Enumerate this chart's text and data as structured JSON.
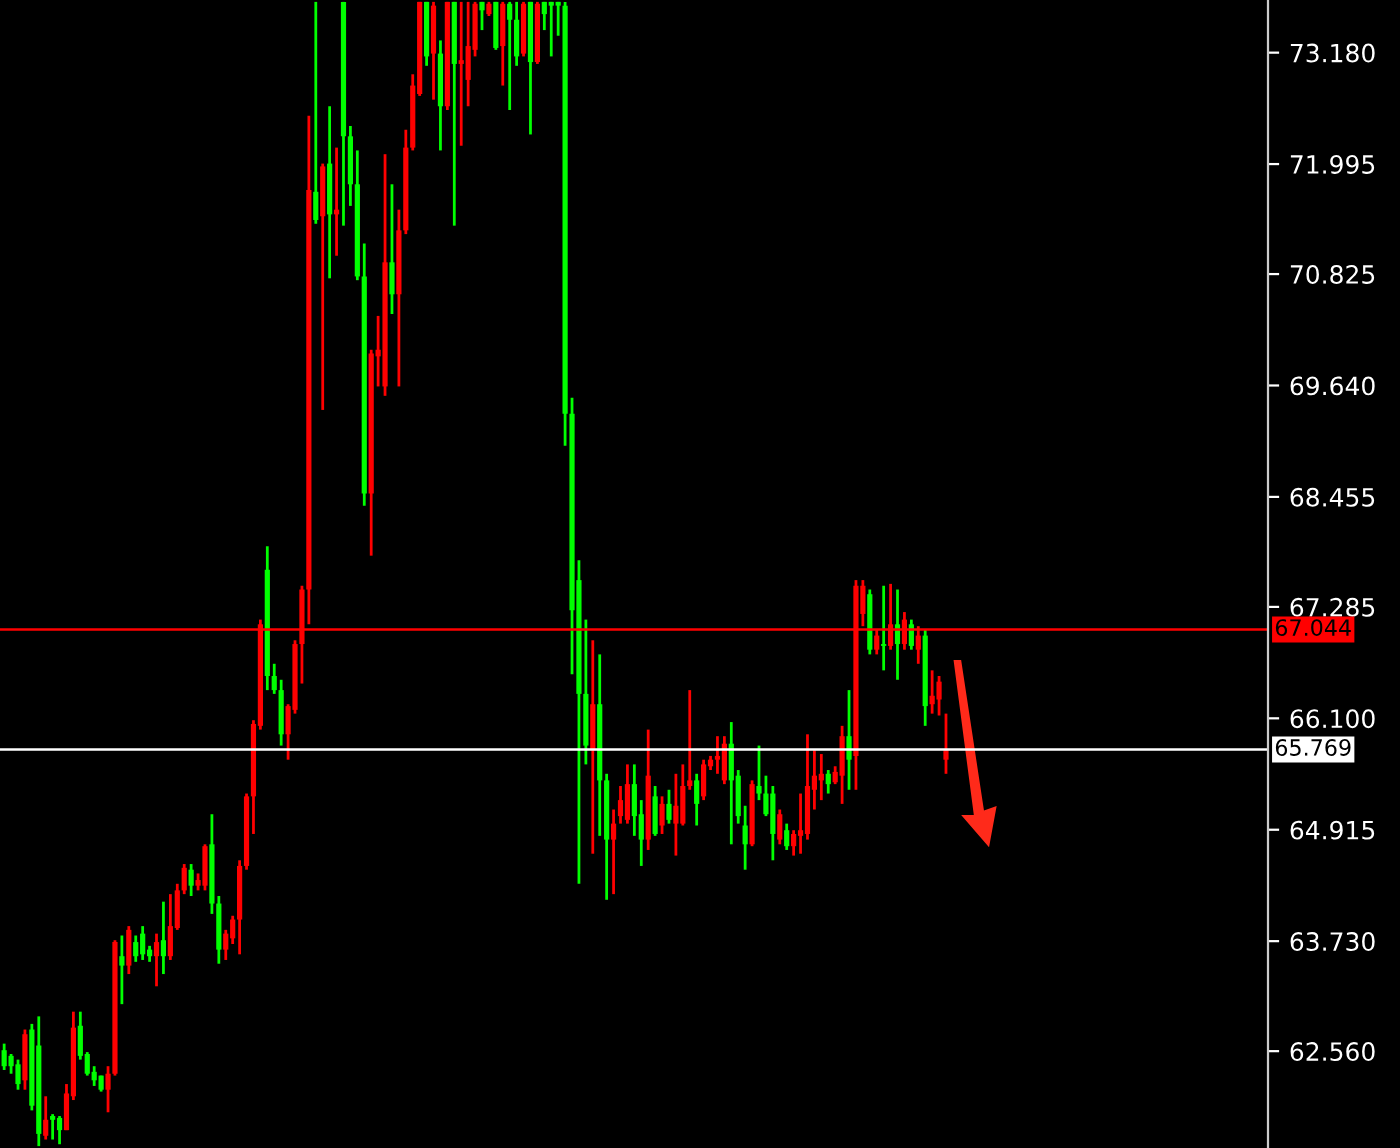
{
  "chart_data": {
    "type": "candlestick",
    "categories": [
      null,
      null,
      null,
      null,
      null,
      null,
      null,
      null,
      null,
      null,
      null,
      null,
      null,
      null,
      null,
      null,
      null,
      null,
      null,
      null,
      null,
      null,
      null,
      null,
      null,
      null,
      null,
      null,
      null,
      null,
      null,
      null,
      null,
      null,
      null,
      null,
      null,
      null,
      null,
      null,
      null,
      null,
      null,
      null,
      null,
      null,
      null,
      null,
      null,
      null,
      null,
      null,
      null,
      null,
      null,
      null,
      null,
      null,
      null,
      null,
      null,
      null,
      null,
      null,
      null,
      null,
      null,
      null,
      null,
      null,
      null,
      null,
      null,
      null,
      null,
      null,
      null,
      null,
      null,
      null,
      null,
      null,
      null,
      null,
      null,
      null,
      null,
      null,
      null,
      null,
      null,
      null,
      null,
      null,
      null,
      null,
      null,
      null,
      null,
      null,
      null,
      null,
      null,
      null,
      null,
      null,
      null,
      null,
      null,
      null,
      null,
      null,
      null,
      null,
      null,
      null,
      null,
      null,
      null,
      null,
      null,
      null,
      null,
      null,
      null,
      null,
      null,
      null,
      null,
      null,
      null,
      null,
      null,
      null,
      null,
      null,
      null,
      null,
      null,
      null,
      null,
      null,
      null,
      null,
      null,
      null,
      null,
      null,
      null,
      null,
      null,
      null,
      null,
      null,
      null,
      null,
      null,
      null,
      null,
      null,
      null,
      null,
      null,
      null,
      null,
      null,
      null,
      null,
      null,
      null,
      null,
      null,
      null,
      null,
      null,
      null,
      null,
      null,
      null,
      null,
      null,
      null,
      null
    ],
    "ohlc": [
      [
        62.57,
        62.64,
        62.36,
        62.4
      ],
      [
        62.51,
        62.53,
        62.32,
        62.4
      ],
      [
        62.42,
        62.47,
        62.15,
        62.21
      ],
      [
        62.25,
        62.79,
        62.15,
        62.74
      ],
      [
        62.79,
        62.85,
        61.93,
        61.98
      ],
      [
        62.62,
        62.93,
        61.55,
        61.68
      ],
      [
        61.66,
        62.08,
        61.62,
        61.83
      ],
      [
        61.87,
        61.89,
        61.62,
        61.83
      ],
      [
        61.85,
        61.87,
        61.57,
        61.72
      ],
      [
        61.72,
        62.21,
        61.72,
        62.11
      ],
      [
        62.08,
        62.98,
        62.04,
        62.81
      ],
      [
        62.83,
        62.98,
        62.47,
        62.51
      ],
      [
        62.53,
        62.55,
        62.3,
        62.32
      ],
      [
        62.34,
        62.4,
        62.19,
        62.25
      ],
      [
        62.3,
        62.3,
        62.13,
        62.15
      ],
      [
        62.15,
        62.4,
        61.91,
        62.32
      ],
      [
        62.32,
        63.74,
        62.3,
        63.72
      ],
      [
        63.57,
        63.79,
        63.06,
        63.47
      ],
      [
        63.47,
        63.89,
        63.38,
        63.85
      ],
      [
        63.72,
        63.79,
        63.51,
        63.57
      ],
      [
        63.81,
        63.89,
        63.53,
        63.59
      ],
      [
        63.64,
        63.68,
        63.51,
        63.57
      ],
      [
        63.57,
        63.81,
        63.25,
        63.72
      ],
      [
        63.74,
        64.15,
        63.38,
        63.57
      ],
      [
        63.57,
        64.23,
        63.53,
        63.89
      ],
      [
        63.87,
        64.34,
        63.85,
        64.27
      ],
      [
        64.27,
        64.55,
        64.23,
        64.51
      ],
      [
        64.49,
        64.55,
        64.21,
        64.32
      ],
      [
        64.32,
        64.45,
        64.27,
        64.38
      ],
      [
        64.32,
        64.76,
        64.27,
        64.74
      ],
      [
        64.76,
        65.08,
        64.02,
        64.13
      ],
      [
        64.13,
        64.21,
        63.49,
        63.64
      ],
      [
        63.64,
        63.85,
        63.53,
        63.81
      ],
      [
        63.76,
        64.0,
        63.7,
        63.96
      ],
      [
        63.96,
        64.59,
        63.59,
        64.53
      ],
      [
        64.53,
        65.3,
        64.49,
        65.27
      ],
      [
        65.27,
        66.08,
        64.87,
        66.04
      ],
      [
        66.02,
        67.15,
        65.98,
        67.1
      ],
      [
        67.68,
        67.93,
        66.4,
        66.55
      ],
      [
        66.55,
        66.68,
        66.36,
        66.4
      ],
      [
        66.4,
        66.51,
        65.81,
        65.93
      ],
      [
        65.93,
        66.25,
        65.66,
        66.23
      ],
      [
        66.19,
        66.93,
        66.15,
        66.89
      ],
      [
        66.89,
        67.51,
        66.47,
        67.47
      ],
      [
        67.47,
        72.51,
        67.1,
        71.72
      ],
      [
        71.7,
        73.72,
        71.36,
        71.4
      ],
      [
        71.44,
        72.0,
        69.38,
        71.97
      ],
      [
        72.0,
        72.61,
        70.78,
        71.46
      ],
      [
        71.46,
        72.17,
        71.02,
        71.51
      ],
      [
        73.72,
        73.72,
        71.34,
        72.29
      ],
      [
        72.29,
        72.4,
        71.55,
        71.78
      ],
      [
        71.78,
        72.14,
        70.76,
        70.8
      ],
      [
        70.8,
        71.15,
        68.36,
        68.49
      ],
      [
        68.49,
        70.02,
        67.83,
        69.98
      ],
      [
        69.95,
        70.38,
        69.63,
        70.02
      ],
      [
        69.63,
        72.1,
        69.53,
        70.95
      ],
      [
        70.95,
        71.78,
        70.4,
        70.61
      ],
      [
        70.61,
        71.51,
        69.63,
        71.29
      ],
      [
        71.29,
        72.36,
        71.25,
        72.17
      ],
      [
        72.17,
        72.95,
        72.14,
        72.83
      ],
      [
        72.74,
        73.72,
        72.72,
        73.72
      ],
      [
        73.72,
        73.72,
        73.04,
        73.14
      ],
      [
        73.17,
        73.72,
        72.68,
        73.68
      ],
      [
        73.17,
        73.31,
        72.14,
        72.61
      ],
      [
        72.61,
        73.72,
        72.57,
        73.72
      ],
      [
        73.72,
        73.72,
        71.34,
        73.06
      ],
      [
        73.06,
        73.72,
        72.19,
        73.1
      ],
      [
        72.89,
        73.72,
        72.61,
        73.25
      ],
      [
        73.21,
        73.72,
        73.14,
        73.7
      ],
      [
        73.72,
        73.72,
        73.42,
        73.63
      ],
      [
        73.59,
        73.72,
        73.57,
        73.7
      ],
      [
        73.72,
        73.72,
        73.21,
        73.23
      ],
      [
        73.25,
        73.72,
        72.83,
        73.7
      ],
      [
        73.7,
        73.72,
        72.57,
        73.53
      ],
      [
        73.53,
        73.72,
        73.04,
        73.14
      ],
      [
        73.17,
        73.72,
        73.14,
        73.7
      ],
      [
        73.72,
        73.72,
        72.31,
        73.08
      ],
      [
        73.08,
        73.72,
        73.06,
        73.7
      ],
      [
        73.72,
        73.72,
        73.42,
        73.59
      ],
      [
        73.72,
        73.72,
        73.14,
        73.68
      ],
      [
        73.72,
        73.72,
        73.36,
        73.68
      ],
      [
        73.68,
        73.72,
        69.0,
        69.34
      ],
      [
        69.34,
        69.51,
        66.57,
        67.25
      ],
      [
        67.57,
        67.78,
        64.34,
        66.36
      ],
      [
        66.36,
        67.15,
        65.61,
        65.81
      ],
      [
        65.76,
        66.93,
        64.66,
        66.25
      ],
      [
        66.25,
        66.78,
        64.85,
        65.44
      ],
      [
        65.44,
        65.51,
        64.17,
        64.81
      ],
      [
        64.81,
        65.13,
        64.23,
        64.98
      ],
      [
        65.06,
        65.38,
        64.98,
        65.23
      ],
      [
        65.02,
        65.61,
        64.98,
        65.4
      ],
      [
        65.4,
        65.61,
        64.85,
        65.06
      ],
      [
        65.08,
        65.23,
        64.53,
        64.81
      ],
      [
        64.81,
        65.98,
        64.7,
        65.49
      ],
      [
        65.27,
        65.38,
        64.85,
        64.87
      ],
      [
        64.96,
        65.27,
        64.87,
        65.19
      ],
      [
        65.19,
        65.34,
        64.98,
        65.02
      ],
      [
        64.98,
        65.51,
        64.64,
        65.17
      ],
      [
        64.98,
        65.61,
        64.96,
        65.38
      ],
      [
        65.38,
        66.4,
        65.34,
        65.44
      ],
      [
        65.44,
        65.51,
        64.96,
        65.19
      ],
      [
        65.27,
        65.66,
        65.23,
        65.61
      ],
      [
        65.59,
        65.7,
        65.55,
        65.66
      ],
      [
        65.66,
        65.91,
        65.51,
        65.7
      ],
      [
        65.44,
        65.91,
        65.4,
        65.83
      ],
      [
        65.83,
        66.06,
        64.76,
        65.44
      ],
      [
        65.49,
        65.55,
        64.98,
        65.06
      ],
      [
        64.96,
        65.17,
        64.49,
        64.76
      ],
      [
        64.76,
        65.44,
        64.74,
        65.4
      ],
      [
        65.38,
        65.81,
        65.23,
        65.3
      ],
      [
        65.3,
        65.49,
        65.06,
        65.08
      ],
      [
        65.3,
        65.38,
        64.59,
        64.87
      ],
      [
        64.81,
        65.13,
        64.76,
        65.08
      ],
      [
        64.91,
        64.98,
        64.7,
        64.74
      ],
      [
        64.74,
        64.91,
        64.64,
        64.87
      ],
      [
        64.85,
        65.3,
        64.66,
        64.91
      ],
      [
        64.87,
        65.93,
        64.81,
        65.38
      ],
      [
        65.34,
        65.76,
        65.13,
        65.49
      ],
      [
        65.44,
        65.72,
        65.23,
        65.51
      ],
      [
        65.51,
        65.55,
        65.3,
        65.4
      ],
      [
        65.42,
        65.59,
        65.4,
        65.53
      ],
      [
        65.49,
        66.02,
        65.19,
        65.91
      ],
      [
        65.91,
        66.4,
        65.34,
        65.66
      ],
      [
        65.7,
        67.57,
        65.34,
        67.51
      ],
      [
        67.21,
        67.57,
        67.08,
        67.51
      ],
      [
        67.42,
        67.47,
        66.78,
        66.83
      ],
      [
        66.83,
        67.04,
        66.78,
        66.98
      ],
      [
        66.89,
        67.51,
        66.61,
        66.87
      ],
      [
        66.87,
        67.53,
        66.83,
        67.1
      ],
      [
        67.1,
        67.47,
        66.51,
        66.89
      ],
      [
        66.89,
        67.23,
        66.83,
        67.15
      ],
      [
        67.1,
        67.15,
        66.83,
        66.87
      ],
      [
        66.83,
        67.08,
        66.68,
        66.98
      ],
      [
        66.98,
        67.04,
        66.02,
        66.23
      ],
      [
        66.25,
        66.61,
        66.15,
        66.34
      ],
      [
        66.3,
        66.55,
        66.13,
        66.49
      ],
      [
        65.66,
        66.15,
        65.51,
        65.76
      ],
      null,
      null,
      null,
      null,
      null,
      null,
      null,
      null,
      null,
      null,
      null,
      null,
      null,
      null,
      null,
      null,
      null,
      null,
      null,
      null,
      null,
      null,
      null,
      null,
      null,
      null,
      null,
      null,
      null,
      null,
      null,
      null,
      null,
      null,
      null,
      null,
      null,
      null,
      null,
      null,
      null,
      null,
      null,
      null,
      null,
      null
    ],
    "colors": [
      "#00ff00",
      "#00ff00",
      "#00ff00",
      "#ff0000",
      "#00ff00",
      "#00ff00",
      "#ff0000",
      "#00ff00",
      "#00ff00",
      "#ff0000",
      "#ff0000",
      "#00ff00",
      "#00ff00",
      "#00ff00",
      "#00ff00",
      "#ff0000",
      "#ff0000",
      "#00ff00",
      "#ff0000",
      "#00ff00",
      "#00ff00",
      "#00ff00",
      "#ff0000",
      "#00ff00",
      "#ff0000",
      "#ff0000",
      "#ff0000",
      "#00ff00",
      "#ff0000",
      "#ff0000",
      "#00ff00",
      "#00ff00",
      "#ff0000",
      "#ff0000",
      "#ff0000",
      "#ff0000",
      "#ff0000",
      "#ff0000",
      "#00ff00",
      "#00ff00",
      "#00ff00",
      "#ff0000",
      "#ff0000",
      "#ff0000",
      "#ff0000",
      "#00ff00",
      "#ff0000",
      "#00ff00",
      "#ff0000",
      "#00ff00",
      "#00ff00",
      "#00ff00",
      "#00ff00",
      "#ff0000",
      "#ff0000",
      "#ff0000",
      "#00ff00",
      "#ff0000",
      "#ff0000",
      "#ff0000",
      "#ff0000",
      "#00ff00",
      "#ff0000",
      "#00ff00",
      "#ff0000",
      "#00ff00",
      "#ff0000",
      "#ff0000",
      "#ff0000",
      "#00ff00",
      "#ff0000",
      "#00ff00",
      "#ff0000",
      "#00ff00",
      "#00ff00",
      "#ff0000",
      "#00ff00",
      "#ff0000",
      "#00ff00",
      "#00ff00",
      "#00ff00",
      "#00ff00",
      "#00ff00",
      "#00ff00",
      "#00ff00",
      "#ff0000",
      "#00ff00",
      "#00ff00",
      "#ff0000",
      "#ff0000",
      "#ff0000",
      "#00ff00",
      "#00ff00",
      "#ff0000",
      "#00ff00",
      "#ff0000",
      "#00ff00",
      "#ff0000",
      "#ff0000",
      "#ff0000",
      "#00ff00",
      "#ff0000",
      "#ff0000",
      "#ff0000",
      "#ff0000",
      "#00ff00",
      "#00ff00",
      "#00ff00",
      "#ff0000",
      "#00ff00",
      "#00ff00",
      "#00ff00",
      "#ff0000",
      "#00ff00",
      "#ff0000",
      "#ff0000",
      "#ff0000",
      "#ff0000",
      "#ff0000",
      "#00ff00",
      "#ff0000",
      "#ff0000",
      "#00ff00",
      "#ff0000",
      "#ff0000",
      "#00ff00",
      "#ff0000",
      "#00ff00",
      "#ff0000",
      "#00ff00",
      "#ff0000",
      "#00ff00",
      "#ff0000",
      "#00ff00",
      "#ff0000",
      "#ff0000",
      "#ff0000",
      null,
      null,
      null,
      null,
      null,
      null,
      null,
      null,
      null,
      null,
      null,
      null,
      null,
      null,
      null,
      null,
      null,
      null,
      null,
      null,
      null,
      null,
      null,
      null,
      null,
      null,
      null,
      null,
      null,
      null,
      null,
      null,
      null,
      null,
      null,
      null,
      null,
      null,
      null,
      null,
      null,
      null,
      null,
      null,
      null,
      null
    ],
    "ylim": [
      61.53,
      73.74
    ],
    "yticks": [
      {
        "value": 62.56,
        "label": "62.560"
      },
      {
        "value": 63.73,
        "label": "63.730"
      },
      64.915,
      {
        "value": 66.1,
        "label": "66.100"
      },
      67.285,
      68.455,
      {
        "value": 69.64,
        "label": "69.640"
      },
      70.825,
      71.995,
      {
        "value": 73.18,
        "label": "73.180"
      }
    ],
    "tick_labels": "y",
    "ref_lines": [
      {
        "axis": "y",
        "value": 67.044,
        "label": "67.044",
        "color": "#ff0000"
      },
      {
        "axis": "y",
        "value": 65.769,
        "label": "65.769",
        "color": "#ffffff"
      }
    ]
  }
}
